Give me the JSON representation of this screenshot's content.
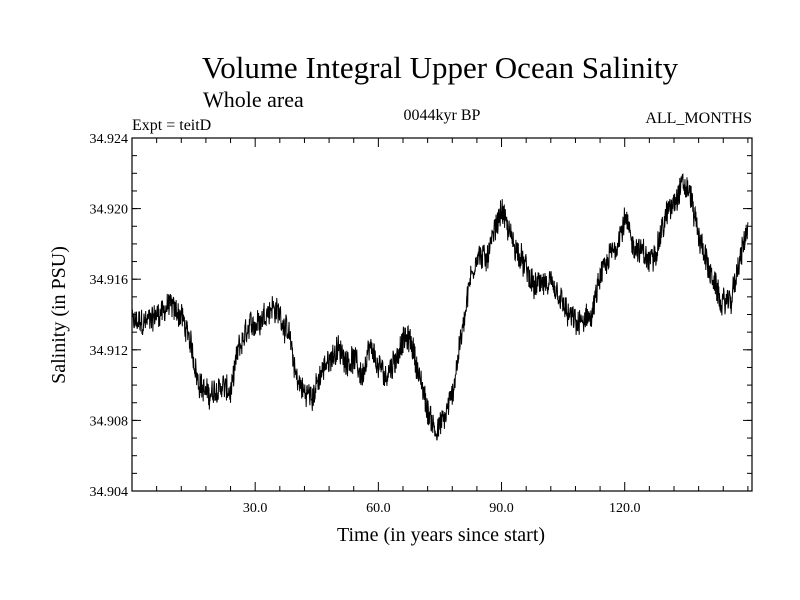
{
  "chart_data": {
    "type": "line",
    "title": "Volume Integral Upper Ocean Salinity",
    "subtitle": "Whole area",
    "experiment_label": "Expt = teitD",
    "period_label": "0044kyr BP",
    "months_label": "ALL_MONTHS",
    "xlabel": "Time (in years since start)",
    "ylabel": "Salinity (in PSU)",
    "xlim": [
      0,
      151
    ],
    "ylim": [
      34.904,
      34.924
    ],
    "x_ticks": [
      30,
      60,
      90,
      120
    ],
    "x_tick_labels": [
      "30.0",
      "60.0",
      "90.0",
      "120.0"
    ],
    "y_ticks": [
      34.904,
      34.908,
      34.912,
      34.916,
      34.92,
      34.924
    ],
    "y_tick_labels": [
      "34.904",
      "34.908",
      "34.912",
      "34.916",
      "34.920",
      "34.924"
    ],
    "series": [
      {
        "name": "salinity",
        "color": "#000000",
        "noise_amplitude": 0.0009,
        "x": [
          0,
          3,
          6,
          9,
          12,
          14,
          16,
          18,
          20,
          22,
          24,
          26,
          28,
          30,
          32,
          34,
          36,
          38,
          40,
          42,
          44,
          46,
          48,
          50,
          52,
          54,
          56,
          58,
          60,
          62,
          64,
          66,
          68,
          70,
          72,
          74,
          76,
          78,
          80,
          82,
          84,
          86,
          88,
          90,
          92,
          94,
          96,
          98,
          100,
          102,
          104,
          106,
          108,
          110,
          112,
          114,
          116,
          118,
          120,
          122,
          124,
          126,
          128,
          130,
          132,
          134,
          136,
          138,
          140,
          142,
          144,
          146,
          148,
          150
        ],
        "values": [
          34.9135,
          34.9135,
          34.914,
          34.9145,
          34.914,
          34.9125,
          34.9105,
          34.9095,
          34.9095,
          34.91,
          34.9095,
          34.912,
          34.913,
          34.9135,
          34.914,
          34.9145,
          34.914,
          34.913,
          34.9105,
          34.9095,
          34.9095,
          34.9105,
          34.9115,
          34.912,
          34.9115,
          34.9115,
          34.9105,
          34.912,
          34.911,
          34.9105,
          34.9115,
          34.9125,
          34.9125,
          34.9105,
          34.9085,
          34.9075,
          34.908,
          34.9095,
          34.9125,
          34.9155,
          34.9175,
          34.917,
          34.9185,
          34.92,
          34.9185,
          34.9175,
          34.9165,
          34.9155,
          34.9158,
          34.9155,
          34.915,
          34.914,
          34.9135,
          34.9135,
          34.914,
          34.916,
          34.917,
          34.918,
          34.9195,
          34.918,
          34.9175,
          34.917,
          34.918,
          34.9195,
          34.9205,
          34.9215,
          34.9208,
          34.9185,
          34.917,
          34.9155,
          34.9145,
          34.915,
          34.917,
          34.919
        ]
      }
    ]
  }
}
